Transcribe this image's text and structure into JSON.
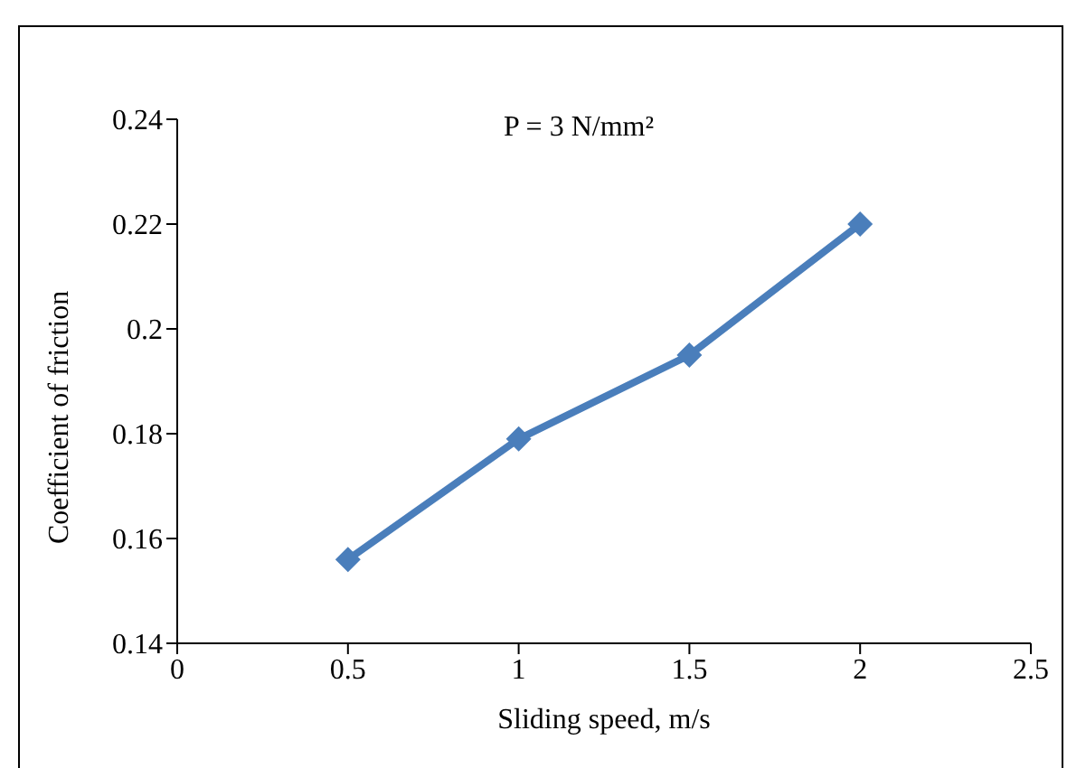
{
  "chart_data": {
    "type": "line",
    "title": "P = 3 N/mm²",
    "xlabel": "Sliding speed, m/s",
    "ylabel": "Coefficient of friction",
    "x": [
      0.5,
      1,
      1.5,
      2
    ],
    "series": [
      {
        "color": "#4a7ebb",
        "values": [
          0.156,
          0.179,
          0.195,
          0.22
        ]
      }
    ],
    "xlim": [
      0,
      2.5
    ],
    "xticks": [
      0,
      0.5,
      1,
      1.5,
      2,
      2.5
    ],
    "ylim": [
      0.14,
      0.24
    ],
    "yticks": [
      0.14,
      0.16,
      0.18,
      0.2,
      0.22,
      0.24
    ],
    "grid": false,
    "legend": false,
    "marker": "diamond",
    "line_style": "solid"
  }
}
